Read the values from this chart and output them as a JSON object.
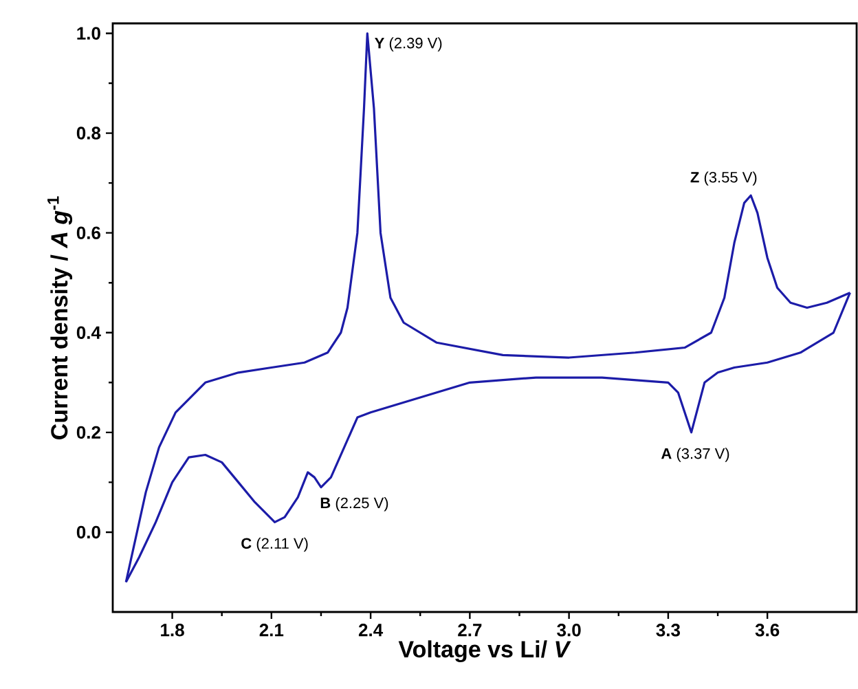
{
  "chart_data": {
    "type": "line",
    "xlabel": "Voltage vs Li/ *V*",
    "ylabel": "Current density / *A g*$^{-1}$",
    "xlim": [
      1.62,
      3.87
    ],
    "ylim": [
      -0.16,
      1.02
    ],
    "xticks": [
      {
        "value": 1.8,
        "label": "1.8"
      },
      {
        "value": 2.1,
        "label": "2.1"
      },
      {
        "value": 2.4,
        "label": "2.4"
      },
      {
        "value": 2.7,
        "label": "2.7"
      },
      {
        "value": 3.0,
        "label": "3.0"
      },
      {
        "value": 3.3,
        "label": "3.3"
      },
      {
        "value": 3.6,
        "label": "3.6"
      }
    ],
    "yticks": [
      {
        "value": 0,
        "label": "0.0"
      },
      {
        "value": 0.2,
        "label": "0.2"
      },
      {
        "value": 0.4,
        "label": "0.4"
      },
      {
        "value": 0.6,
        "label": "0.6"
      },
      {
        "value": 0.8,
        "label": "0.8"
      },
      {
        "value": 1.0,
        "label": "1.0"
      }
    ],
    "grid": false,
    "marker": "none",
    "line_style": "solid",
    "series": [
      {
        "color": "#1c1ca8",
        "x": [
          1.66,
          1.68,
          1.72,
          1.76,
          1.81,
          1.9,
          2.0,
          2.1,
          2.2,
          2.27,
          2.31,
          2.33,
          2.36,
          2.38,
          2.39,
          2.41,
          2.43,
          2.46,
          2.5,
          2.6,
          2.8,
          3.0,
          3.2,
          3.35,
          3.43,
          3.47,
          3.5,
          3.53,
          3.55,
          3.57,
          3.6,
          3.63,
          3.67,
          3.72,
          3.78,
          3.85
        ],
        "values": [
          -0.1,
          -0.04,
          0.08,
          0.17,
          0.24,
          0.3,
          0.32,
          0.33,
          0.34,
          0.36,
          0.4,
          0.45,
          0.6,
          0.85,
          1.0,
          0.85,
          0.6,
          0.47,
          0.42,
          0.38,
          0.355,
          0.35,
          0.36,
          0.37,
          0.4,
          0.47,
          0.58,
          0.66,
          0.675,
          0.64,
          0.55,
          0.49,
          0.46,
          0.45,
          0.46,
          0.48
        ]
      },
      {
        "color": "#1c1ca8",
        "x": [
          1.66,
          1.7,
          1.75,
          1.8,
          1.85,
          1.9,
          1.95,
          2.0,
          2.05,
          2.11,
          2.14,
          2.18,
          2.21,
          2.23,
          2.25,
          2.28,
          2.32,
          2.36,
          2.4,
          2.5,
          2.6,
          2.7,
          2.9,
          3.1,
          3.3,
          3.33,
          3.35,
          3.37,
          3.39,
          3.41,
          3.45,
          3.5,
          3.6,
          3.7,
          3.8,
          3.85
        ],
        "values": [
          -0.1,
          -0.05,
          0.02,
          0.1,
          0.15,
          0.155,
          0.14,
          0.1,
          0.06,
          0.02,
          0.03,
          0.07,
          0.12,
          0.11,
          0.09,
          0.11,
          0.17,
          0.23,
          0.24,
          0.26,
          0.28,
          0.3,
          0.31,
          0.31,
          0.3,
          0.28,
          0.24,
          0.2,
          0.25,
          0.3,
          0.32,
          0.33,
          0.34,
          0.36,
          0.4,
          0.48
        ]
      }
    ],
    "annotations": [
      {
        "text": "**Y** (2.39 V)",
        "x": 2.39,
        "y": 1.0
      },
      {
        "text": "**Z** (3.55 V)",
        "x": 3.55,
        "y": 0.675
      },
      {
        "text": "**A** (3.37 V)",
        "x": 3.37,
        "y": 0.2
      },
      {
        "text": "**B** (2.25 V)",
        "x": 2.25,
        "y": 0.09
      },
      {
        "text": "**C** (2.11 V)",
        "x": 2.11,
        "y": 0.02
      }
    ]
  }
}
